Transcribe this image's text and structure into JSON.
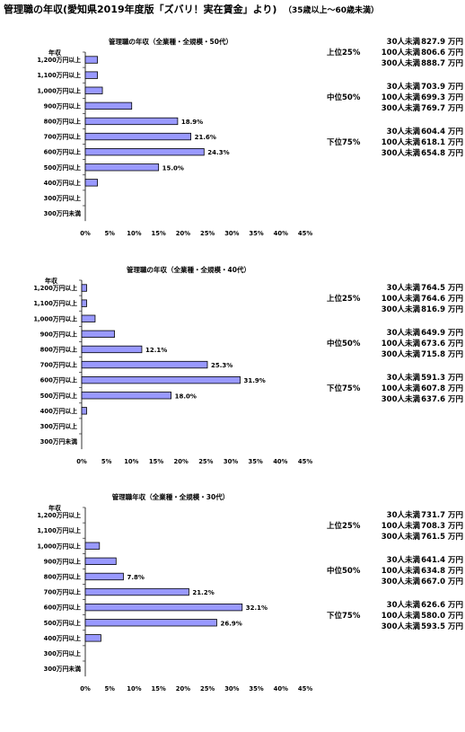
{
  "header": {
    "title": "管理職の年収(愛知県2019年度版「ズバリ！実在賃金」より)",
    "subtitle": "（35歳以上～60歳未満）"
  },
  "chart_data": [
    {
      "type": "bar",
      "orientation": "horizontal",
      "title": "管理職の年収（全業種・全規模・50代）",
      "ylabel": "年収",
      "categories": [
        "1,200万円以上",
        "1,100万円以上",
        "1,000万円以上",
        "900万円以上",
        "800万円以上",
        "700万円以上",
        "600万円以上",
        "500万円以上",
        "400万円以上",
        "300万円以上",
        "300万円未満"
      ],
      "values": [
        2.5,
        2.5,
        3.5,
        9.5,
        18.9,
        21.6,
        24.3,
        15.0,
        2.5,
        0,
        0
      ],
      "data_labels": [
        "",
        "",
        "",
        "",
        "18.9%",
        "21.6%",
        "24.3%",
        "15.0%",
        "",
        "",
        ""
      ],
      "xlim": [
        0,
        45
      ],
      "xticks": [
        "0%",
        "5%",
        "10%",
        "15%",
        "20%",
        "25%",
        "30%",
        "35%",
        "40%",
        "45%"
      ],
      "bar_color": "#9999ff",
      "table": [
        {
          "tier": "上位25%",
          "rows": [
            {
              "label": "30人未満",
              "value": "827.9 万円"
            },
            {
              "label": "100人未満",
              "value": "806.6 万円"
            },
            {
              "label": "300人未満",
              "value": "888.7 万円"
            }
          ]
        },
        {
          "tier": "中位50%",
          "rows": [
            {
              "label": "30人未満",
              "value": "703.9 万円"
            },
            {
              "label": "100人未満",
              "value": "699.3 万円"
            },
            {
              "label": "300人未満",
              "value": "769.7 万円"
            }
          ]
        },
        {
          "tier": "下位75%",
          "rows": [
            {
              "label": "30人未満",
              "value": "604.4 万円"
            },
            {
              "label": "100人未満",
              "value": "618.1 万円"
            },
            {
              "label": "300人未満",
              "value": "654.8 万円"
            }
          ]
        }
      ]
    },
    {
      "type": "bar",
      "orientation": "horizontal",
      "title": "管理職の年収（全業種・全規模・40代）",
      "ylabel": "年収",
      "categories": [
        "1,200万円以上",
        "1,100万円以上",
        "1,000万円以上",
        "900万円以上",
        "800万円以上",
        "700万円以上",
        "600万円以上",
        "500万円以上",
        "400万円以上",
        "300万円以上",
        "300万円未満"
      ],
      "values": [
        1.0,
        1.0,
        2.7,
        6.6,
        12.1,
        25.3,
        31.9,
        18.0,
        1.0,
        0,
        0
      ],
      "data_labels": [
        "",
        "",
        "",
        "",
        "12.1%",
        "25.3%",
        "31.9%",
        "18.0%",
        "",
        "",
        ""
      ],
      "xlim": [
        0,
        45
      ],
      "xticks": [
        "0%",
        "5%",
        "10%",
        "15%",
        "20%",
        "25%",
        "30%",
        "35%",
        "40%",
        "45%"
      ],
      "bar_color": "#9999ff",
      "table": [
        {
          "tier": "上位25%",
          "rows": [
            {
              "label": "30人未満",
              "value": "764.5 万円"
            },
            {
              "label": "100人未満",
              "value": "764.6 万円"
            },
            {
              "label": "300人未満",
              "value": "816.9 万円"
            }
          ]
        },
        {
          "tier": "中位50%",
          "rows": [
            {
              "label": "30人未満",
              "value": "649.9 万円"
            },
            {
              "label": "100人未満",
              "value": "673.6 万円"
            },
            {
              "label": "300人未満",
              "value": "715.8 万円"
            }
          ]
        },
        {
          "tier": "下位75%",
          "rows": [
            {
              "label": "30人未満",
              "value": "591.3 万円"
            },
            {
              "label": "100人未満",
              "value": "607.8 万円"
            },
            {
              "label": "300人未満",
              "value": "637.6 万円"
            }
          ]
        }
      ]
    },
    {
      "type": "bar",
      "orientation": "horizontal",
      "title": "管理職年収（全業種・全規模・30代）",
      "ylabel": "年収",
      "categories": [
        "1,200万円以上",
        "1,100万円以上",
        "1,000万円以上",
        "900万円以上",
        "800万円以上",
        "700万円以上",
        "600万円以上",
        "500万円以上",
        "400万円以上",
        "300万円以上",
        "300万円未満"
      ],
      "values": [
        0,
        0,
        2.9,
        6.3,
        7.8,
        21.2,
        32.1,
        26.9,
        3.2,
        0,
        0
      ],
      "data_labels": [
        "",
        "",
        "",
        "",
        "7.8%",
        "21.2%",
        "32.1%",
        "26.9%",
        "",
        "",
        ""
      ],
      "xlim": [
        0,
        45
      ],
      "xticks": [
        "0%",
        "5%",
        "10%",
        "15%",
        "20%",
        "25%",
        "30%",
        "35%",
        "40%",
        "45%"
      ],
      "bar_color": "#9999ff",
      "table": [
        {
          "tier": "上位25%",
          "rows": [
            {
              "label": "30人未満",
              "value": "731.7 万円"
            },
            {
              "label": "100人未満",
              "value": "708.3 万円"
            },
            {
              "label": "300人未満",
              "value": "761.5 万円"
            }
          ]
        },
        {
          "tier": "中位50%",
          "rows": [
            {
              "label": "30人未満",
              "value": "641.4 万円"
            },
            {
              "label": "100人未満",
              "value": "634.8 万円"
            },
            {
              "label": "300人未満",
              "value": "667.0 万円"
            }
          ]
        },
        {
          "tier": "下位75%",
          "rows": [
            {
              "label": "30人未満",
              "value": "626.6 万円"
            },
            {
              "label": "100人未満",
              "value": "580.0 万円"
            },
            {
              "label": "300人未満",
              "value": "593.5 万円"
            }
          ]
        }
      ]
    }
  ]
}
